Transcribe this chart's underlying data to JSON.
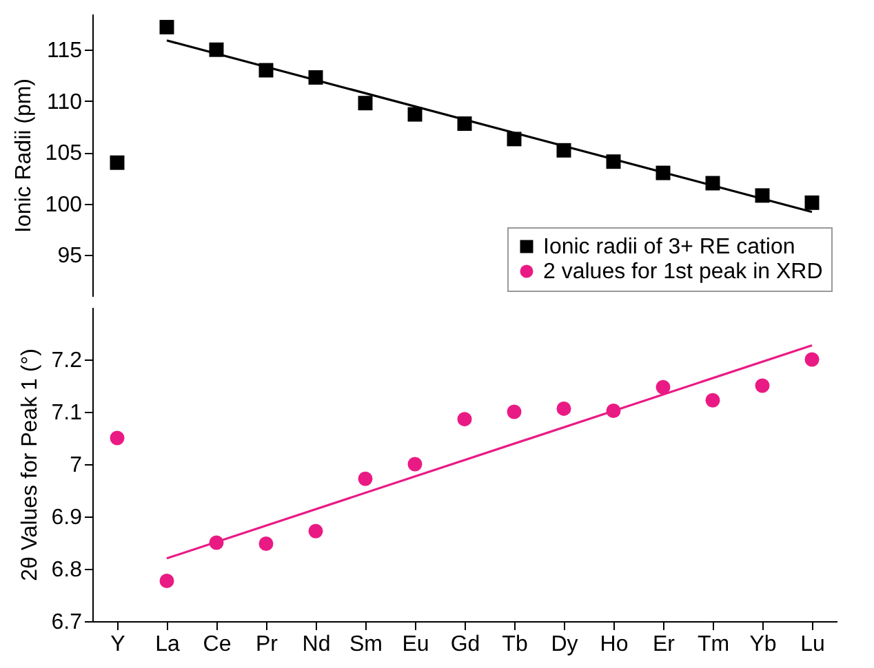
{
  "chart_data": [
    {
      "type": "scatter",
      "ylabel": "Ionic Radii (pm)",
      "categories": [
        "Y",
        "La",
        "Ce",
        "Pr",
        "Nd",
        "Sm",
        "Eu",
        "Gd",
        "Tb",
        "Dy",
        "Ho",
        "Er",
        "Tm",
        "Yb",
        "Lu"
      ],
      "ylim": [
        91,
        118.5
      ],
      "yticks": [
        95,
        100,
        105,
        110,
        115
      ],
      "tick_labels": "y",
      "legend": "bottom right",
      "series": [
        {
          "name": "Ionic radii of 3+ RE cation",
          "color": "#000000",
          "marker": "square",
          "values": [
            104,
            117.2,
            115,
            113,
            112.3,
            109.8,
            108.7,
            107.8,
            106.3,
            105.2,
            104.1,
            103,
            102,
            100.8,
            100.1
          ]
        },
        {
          "type": "line",
          "color": "#000000",
          "marker": "none",
          "x": [
            "La",
            "Lu"
          ],
          "values": [
            115.9,
            99.2
          ]
        }
      ]
    },
    {
      "type": "scatter",
      "ylabel": "2θ Values for Peak 1 (°)",
      "categories": [
        "Y",
        "La",
        "Ce",
        "Pr",
        "Nd",
        "Sm",
        "Eu",
        "Gd",
        "Tb",
        "Dy",
        "Ho",
        "Er",
        "Tm",
        "Yb",
        "Lu"
      ],
      "ylim": [
        6.7,
        7.3
      ],
      "yticks": [
        6.7,
        6.8,
        6.9,
        7,
        7.1,
        7.2
      ],
      "series": [
        {
          "name": "2 values for 1st peak in XRD",
          "color": "#ea1a84",
          "marker": "circle",
          "values": [
            7.05,
            6.777,
            6.85,
            6.848,
            6.872,
            6.972,
            7.0,
            7.086,
            7.1,
            7.106,
            7.102,
            7.147,
            7.122,
            7.15,
            7.2
          ]
        },
        {
          "type": "line",
          "color": "#ea1a84",
          "marker": "none",
          "x": [
            "La",
            "Lu"
          ],
          "values": [
            6.82,
            7.227
          ]
        }
      ]
    }
  ]
}
